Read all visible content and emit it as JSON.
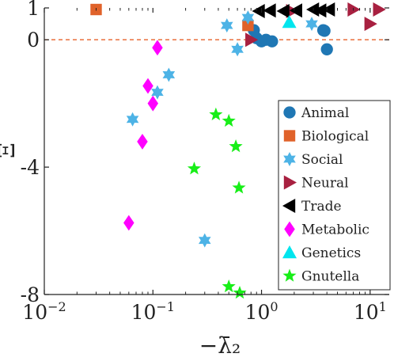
{
  "chart_data": {
    "type": "scatter",
    "xlabel": "−λ̄₂",
    "ylabel": "Ξ",
    "xscale": "log",
    "xlim": [
      0.01,
      15
    ],
    "ylim": [
      -8,
      1
    ],
    "x_ticks": [
      {
        "value": 0.01,
        "base": "10",
        "exp": "−2"
      },
      {
        "value": 0.1,
        "base": "10",
        "exp": "−1"
      },
      {
        "value": 1,
        "base": "10",
        "exp": "0"
      },
      {
        "value": 10,
        "base": "10",
        "exp": "1"
      }
    ],
    "y_ticks": [
      {
        "value": 1,
        "label": "1"
      },
      {
        "value": 0,
        "label": "0"
      },
      {
        "value": -4,
        "label": "-4"
      },
      {
        "value": -8,
        "label": "-8"
      }
    ],
    "reference_line": {
      "y": 0,
      "style": "dashed",
      "color": "#e8622a"
    },
    "grid": false,
    "legend_position": "bottom-right",
    "series": [
      {
        "name": "Animal",
        "marker": "circle",
        "color": "#1f77b4",
        "points": [
          [
            0.85,
            0.3
          ],
          [
            0.9,
            0.05
          ],
          [
            1.0,
            -0.05
          ],
          [
            1.1,
            0.0
          ],
          [
            1.25,
            -0.05
          ],
          [
            3.7,
            0.3
          ],
          [
            3.8,
            0.28
          ],
          [
            4.0,
            -0.3
          ]
        ]
      },
      {
        "name": "Biological",
        "marker": "square",
        "color": "#e0622a",
        "points": [
          [
            0.03,
            0.95
          ],
          [
            0.75,
            0.45
          ]
        ]
      },
      {
        "name": "Social",
        "marker": "hexagram",
        "color": "#4db3e6",
        "points": [
          [
            0.48,
            0.45
          ],
          [
            0.6,
            -0.3
          ],
          [
            0.75,
            0.7
          ],
          [
            2.9,
            0.5
          ],
          [
            0.14,
            -1.1
          ],
          [
            0.11,
            -1.65
          ],
          [
            0.065,
            -2.5
          ],
          [
            0.3,
            -6.3
          ]
        ]
      },
      {
        "name": "Neural",
        "marker": "triangle-right",
        "color": "#a82040",
        "points": [
          [
            0.8,
            0.0
          ],
          [
            1.9,
            0.9
          ],
          [
            7.0,
            0.95
          ],
          [
            10.0,
            0.5
          ],
          [
            12.0,
            0.95
          ]
        ]
      },
      {
        "name": "Trade",
        "marker": "triangle-left",
        "color": "#000000",
        "points": [
          [
            0.95,
            0.9
          ],
          [
            1.2,
            0.92
          ],
          [
            1.6,
            0.9
          ],
          [
            2.1,
            0.92
          ],
          [
            3.0,
            0.95
          ],
          [
            3.5,
            0.92
          ],
          [
            4.2,
            0.95
          ]
        ]
      },
      {
        "name": "Metabolic",
        "marker": "diamond",
        "color": "#ff00ff",
        "points": [
          [
            0.11,
            -0.25
          ],
          [
            0.09,
            -1.45
          ],
          [
            0.1,
            -2.0
          ],
          [
            0.08,
            -3.2
          ],
          [
            0.06,
            -5.75
          ]
        ]
      },
      {
        "name": "Genetics",
        "marker": "triangle-up",
        "color": "#00e5ee",
        "points": [
          [
            1.8,
            0.55
          ]
        ]
      },
      {
        "name": "Gnutella",
        "marker": "pentagram",
        "color": "#18ee18",
        "points": [
          [
            0.38,
            -2.35
          ],
          [
            0.5,
            -2.55
          ],
          [
            0.58,
            -3.35
          ],
          [
            0.24,
            -4.05
          ],
          [
            0.62,
            -4.65
          ],
          [
            0.5,
            -7.75
          ],
          [
            0.63,
            -7.95
          ]
        ]
      }
    ]
  }
}
